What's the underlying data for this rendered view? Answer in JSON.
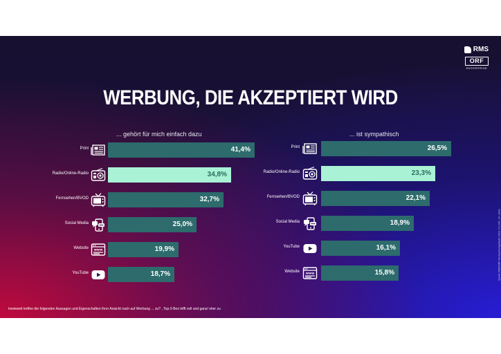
{
  "title": "WERBUNG, DIE AKZEPTIERT WIRD",
  "logos": {
    "rms": "RMS",
    "orf": "ORF",
    "orf_sub": "ENTERPRISE"
  },
  "footnote": "Inwieweit treffen die folgenden Aussagen und Eigenschaften Ihrer Ansicht nach auf Werbung ... zu? , Top-2-Box trifft voll und ganz/ eher zu",
  "source": "Quelle: RMS/ORF Werbewirkungsstudie 2023, n=1.044, 14+ Jahre",
  "colors": {
    "bar": "#2d6b6c",
    "highlight": "#a9f2d5"
  },
  "chart_data": [
    {
      "type": "bar",
      "orientation": "horizontal",
      "subtitle": "... gehört für mich einfach dazu",
      "categories": [
        "Print",
        "Radio/Online-Radio",
        "Fernsehen/BVOD",
        "Social Media",
        "Website",
        "YouTube"
      ],
      "icons": [
        "newspaper-icon",
        "radio-icon",
        "tv-icon",
        "social-media-icon",
        "website-icon",
        "youtube-icon"
      ],
      "values": [
        41.4,
        34.8,
        32.7,
        25.0,
        19.9,
        18.7
      ],
      "labels": [
        "41,4%",
        "34,8%",
        "32,7%",
        "25,0%",
        "19,9%",
        "18,7%"
      ],
      "highlight_index": 1,
      "xlim": [
        0,
        45
      ]
    },
    {
      "type": "bar",
      "orientation": "horizontal",
      "subtitle": "... ist sympathisch",
      "categories": [
        "Print",
        "Radio/Online-Radio",
        "Fernsehen/BVOD",
        "Social Media",
        "YouTube",
        "Website"
      ],
      "icons": [
        "newspaper-icon",
        "radio-icon",
        "tv-icon",
        "social-media-icon",
        "youtube-icon",
        "website-icon"
      ],
      "values": [
        26.5,
        23.3,
        22.1,
        18.9,
        16.1,
        15.8
      ],
      "labels": [
        "26,5%",
        "23,3%",
        "22,1%",
        "18,9%",
        "16,1%",
        "15,8%"
      ],
      "highlight_index": 1,
      "xlim": [
        0,
        30
      ]
    }
  ]
}
